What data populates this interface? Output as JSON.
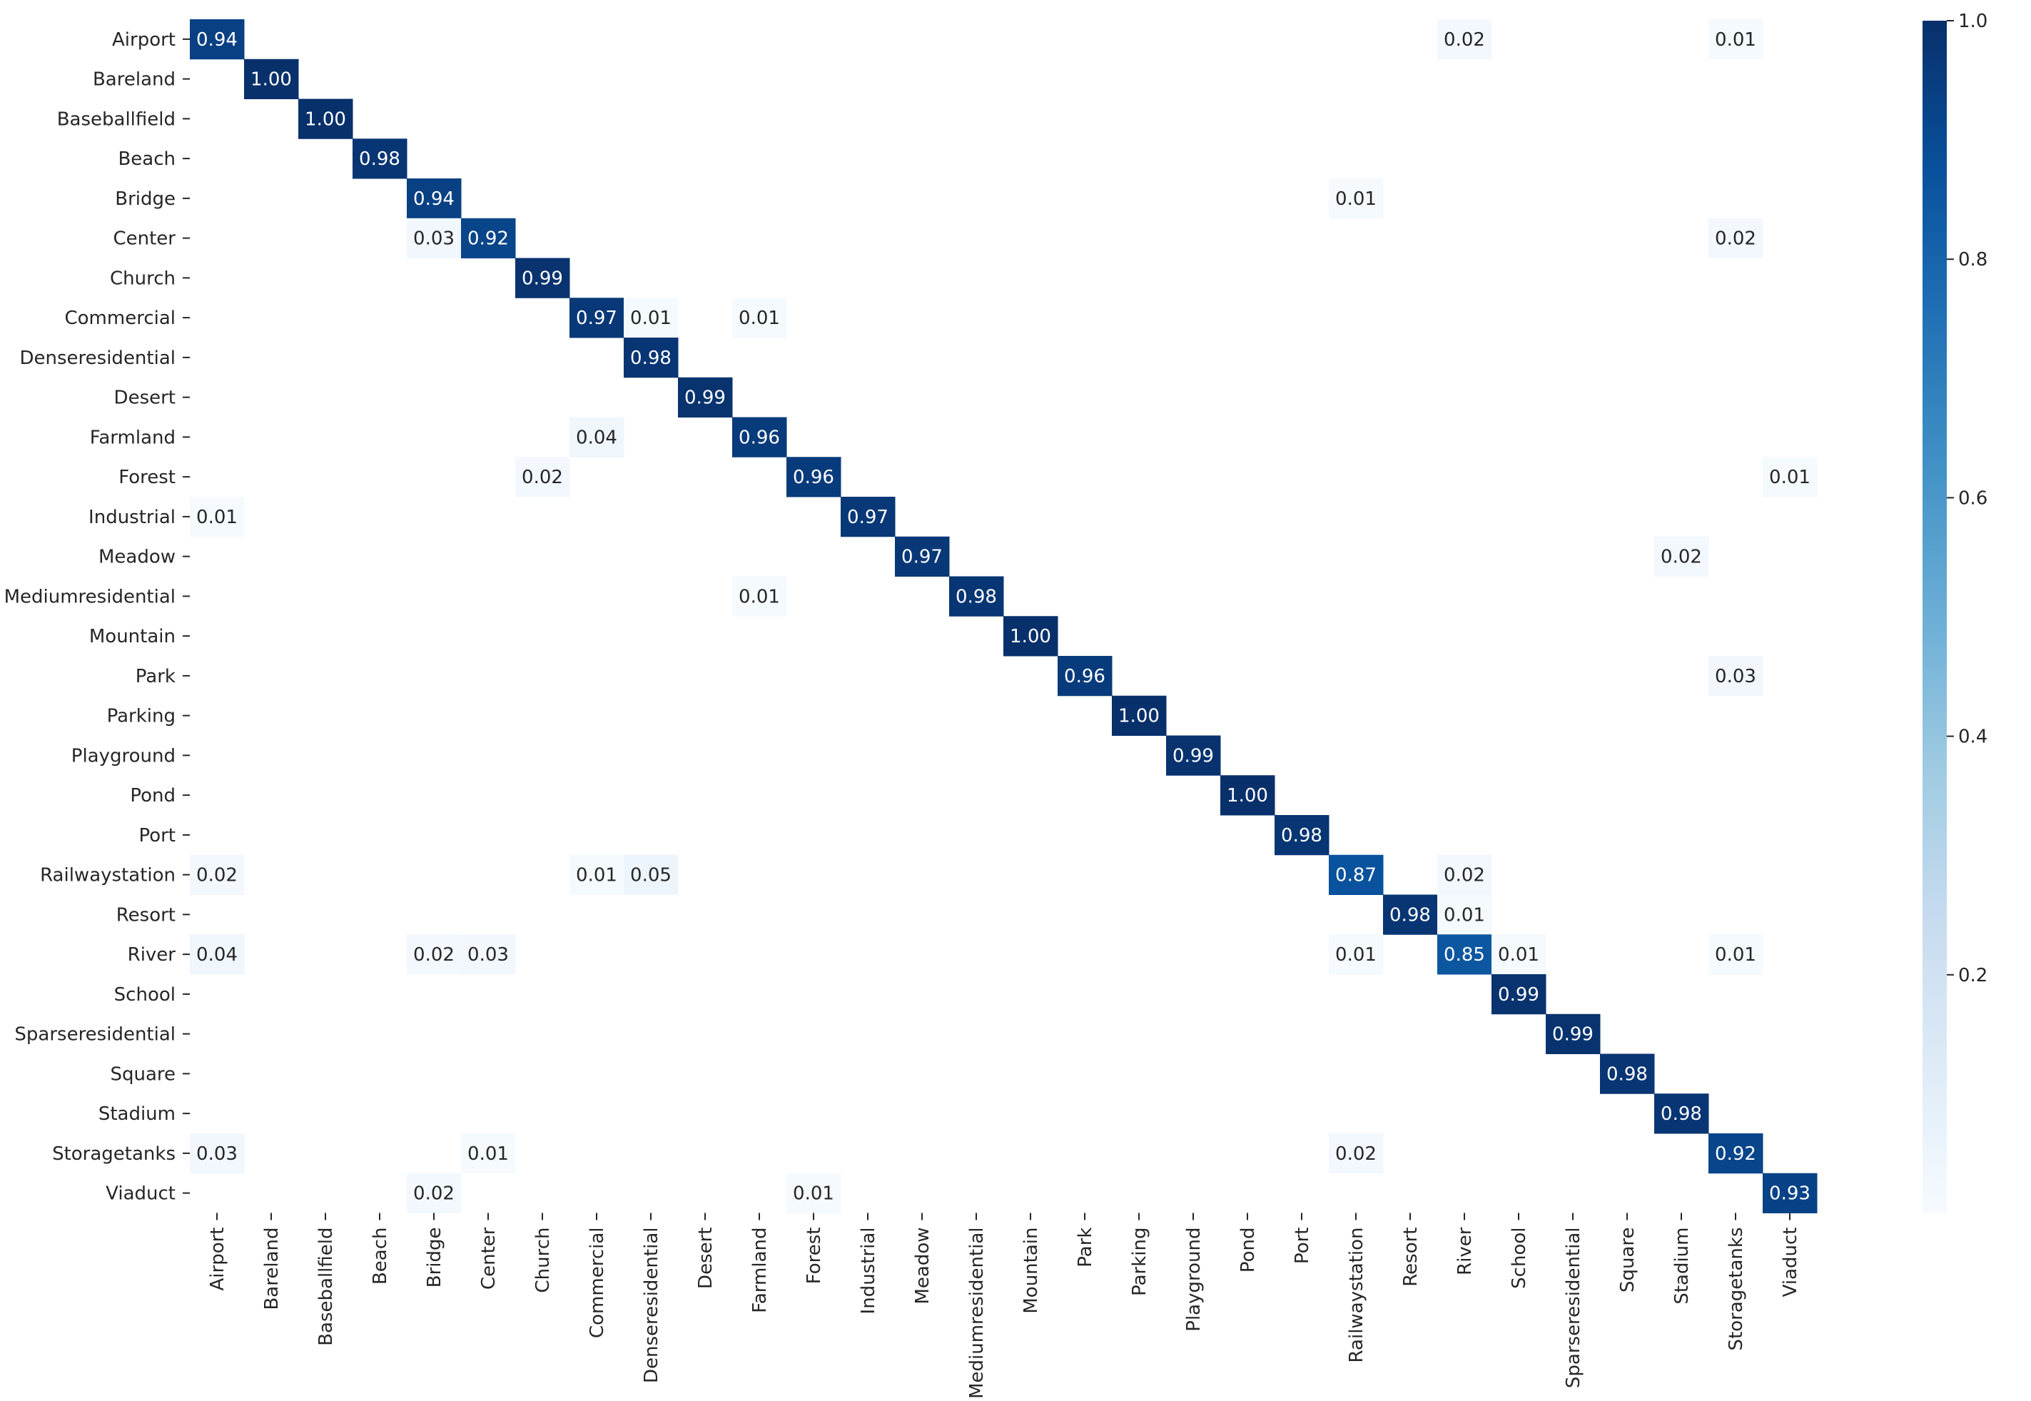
{
  "chart_data": {
    "type": "heatmap",
    "title": "",
    "xlabel": "",
    "ylabel": "",
    "categories": [
      "Airport",
      "Bareland",
      "Baseballfield",
      "Beach",
      "Bridge",
      "Center",
      "Church",
      "Commercial",
      "Denseresidential",
      "Desert",
      "Farmland",
      "Forest",
      "Industrial",
      "Meadow",
      "Mediumresidential",
      "Mountain",
      "Park",
      "Parking",
      "Playground",
      "Pond",
      "Port",
      "Railwaystation",
      "Resort",
      "River",
      "School",
      "Sparseresidential",
      "Square",
      "Stadium",
      "Storagetanks",
      "Viaduct"
    ],
    "cells": [
      {
        "row": "Airport",
        "col": "Airport",
        "value": 0.94,
        "label": "0.94"
      },
      {
        "row": "Airport",
        "col": "River",
        "value": 0.02,
        "label": "0.02"
      },
      {
        "row": "Airport",
        "col": "Storagetanks",
        "value": 0.01,
        "label": "0.01"
      },
      {
        "row": "Bareland",
        "col": "Bareland",
        "value": 1.0,
        "label": "1.00"
      },
      {
        "row": "Baseballfield",
        "col": "Baseballfield",
        "value": 1.0,
        "label": "1.00"
      },
      {
        "row": "Beach",
        "col": "Beach",
        "value": 0.98,
        "label": "0.98"
      },
      {
        "row": "Bridge",
        "col": "Bridge",
        "value": 0.94,
        "label": "0.94"
      },
      {
        "row": "Bridge",
        "col": "Railwaystation",
        "value": 0.01,
        "label": "0.01"
      },
      {
        "row": "Center",
        "col": "Bridge",
        "value": 0.03,
        "label": "0.03"
      },
      {
        "row": "Center",
        "col": "Center",
        "value": 0.92,
        "label": "0.92"
      },
      {
        "row": "Center",
        "col": "Storagetanks",
        "value": 0.02,
        "label": "0.02"
      },
      {
        "row": "Church",
        "col": "Church",
        "value": 0.99,
        "label": "0.99"
      },
      {
        "row": "Commercial",
        "col": "Commercial",
        "value": 0.97,
        "label": "0.97"
      },
      {
        "row": "Commercial",
        "col": "Denseresidential",
        "value": 0.01,
        "label": "0.01"
      },
      {
        "row": "Commercial",
        "col": "Farmland",
        "value": 0.01,
        "label": "0.01"
      },
      {
        "row": "Denseresidential",
        "col": "Denseresidential",
        "value": 0.98,
        "label": "0.98"
      },
      {
        "row": "Desert",
        "col": "Desert",
        "value": 0.99,
        "label": "0.99"
      },
      {
        "row": "Farmland",
        "col": "Commercial",
        "value": 0.04,
        "label": "0.04"
      },
      {
        "row": "Farmland",
        "col": "Farmland",
        "value": 0.96,
        "label": "0.96"
      },
      {
        "row": "Forest",
        "col": "Church",
        "value": 0.02,
        "label": "0.02"
      },
      {
        "row": "Forest",
        "col": "Forest",
        "value": 0.96,
        "label": "0.96"
      },
      {
        "row": "Forest",
        "col": "Viaduct",
        "value": 0.01,
        "label": "0.01"
      },
      {
        "row": "Industrial",
        "col": "Airport",
        "value": 0.01,
        "label": "0.01"
      },
      {
        "row": "Industrial",
        "col": "Industrial",
        "value": 0.97,
        "label": "0.97"
      },
      {
        "row": "Meadow",
        "col": "Meadow",
        "value": 0.97,
        "label": "0.97"
      },
      {
        "row": "Meadow",
        "col": "Stadium",
        "value": 0.02,
        "label": "0.02"
      },
      {
        "row": "Mediumresidential",
        "col": "Farmland",
        "value": 0.01,
        "label": "0.01"
      },
      {
        "row": "Mediumresidential",
        "col": "Mediumresidential",
        "value": 0.98,
        "label": "0.98"
      },
      {
        "row": "Mountain",
        "col": "Mountain",
        "value": 1.0,
        "label": "1.00"
      },
      {
        "row": "Park",
        "col": "Park",
        "value": 0.96,
        "label": "0.96"
      },
      {
        "row": "Park",
        "col": "Storagetanks",
        "value": 0.03,
        "label": "0.03"
      },
      {
        "row": "Parking",
        "col": "Parking",
        "value": 1.0,
        "label": "1.00"
      },
      {
        "row": "Playground",
        "col": "Playground",
        "value": 0.99,
        "label": "0.99"
      },
      {
        "row": "Pond",
        "col": "Pond",
        "value": 1.0,
        "label": "1.00"
      },
      {
        "row": "Port",
        "col": "Port",
        "value": 0.98,
        "label": "0.98"
      },
      {
        "row": "Railwaystation",
        "col": "Airport",
        "value": 0.02,
        "label": "0.02"
      },
      {
        "row": "Railwaystation",
        "col": "Commercial",
        "value": 0.01,
        "label": "0.01"
      },
      {
        "row": "Railwaystation",
        "col": "Denseresidential",
        "value": 0.05,
        "label": "0.05"
      },
      {
        "row": "Railwaystation",
        "col": "Railwaystation",
        "value": 0.87,
        "label": "0.87"
      },
      {
        "row": "Railwaystation",
        "col": "River",
        "value": 0.02,
        "label": "0.02"
      },
      {
        "row": "Resort",
        "col": "Resort",
        "value": 0.98,
        "label": "0.98"
      },
      {
        "row": "Resort",
        "col": "River",
        "value": 0.01,
        "label": "0.01"
      },
      {
        "row": "River",
        "col": "Airport",
        "value": 0.04,
        "label": "0.04"
      },
      {
        "row": "River",
        "col": "Bridge",
        "value": 0.02,
        "label": "0.02"
      },
      {
        "row": "River",
        "col": "Center",
        "value": 0.03,
        "label": "0.03"
      },
      {
        "row": "River",
        "col": "Railwaystation",
        "value": 0.01,
        "label": "0.01"
      },
      {
        "row": "River",
        "col": "River",
        "value": 0.85,
        "label": "0.85"
      },
      {
        "row": "River",
        "col": "School",
        "value": 0.01,
        "label": "0.01"
      },
      {
        "row": "River",
        "col": "Storagetanks",
        "value": 0.01,
        "label": "0.01"
      },
      {
        "row": "School",
        "col": "School",
        "value": 0.99,
        "label": "0.99"
      },
      {
        "row": "Sparseresidential",
        "col": "Sparseresidential",
        "value": 0.99,
        "label": "0.99"
      },
      {
        "row": "Square",
        "col": "Square",
        "value": 0.98,
        "label": "0.98"
      },
      {
        "row": "Stadium",
        "col": "Stadium",
        "value": 0.98,
        "label": "0.98"
      },
      {
        "row": "Storagetanks",
        "col": "Airport",
        "value": 0.03,
        "label": "0.03"
      },
      {
        "row": "Storagetanks",
        "col": "Center",
        "value": 0.01,
        "label": "0.01"
      },
      {
        "row": "Storagetanks",
        "col": "Railwaystation",
        "value": 0.02,
        "label": "0.02"
      },
      {
        "row": "Storagetanks",
        "col": "Storagetanks",
        "value": 0.92,
        "label": "0.92"
      },
      {
        "row": "Viaduct",
        "col": "Bridge",
        "value": 0.02,
        "label": "0.02"
      },
      {
        "row": "Viaduct",
        "col": "Forest",
        "value": 0.01,
        "label": "0.01"
      },
      {
        "row": "Viaduct",
        "col": "Viaduct",
        "value": 0.93,
        "label": "0.93"
      }
    ],
    "colorbar": {
      "colormap": "Blues",
      "range": [
        0.0,
        1.0
      ],
      "ticks": [
        0.2,
        0.4,
        0.6,
        0.8,
        1.0
      ],
      "tick_labels": [
        "0.2",
        "0.4",
        "0.6",
        "0.8",
        "1.0"
      ]
    },
    "grid": false
  },
  "colors": {
    "text_dark": "#262626",
    "cell_text_light": "#ffffff",
    "background": "#ffffff"
  }
}
